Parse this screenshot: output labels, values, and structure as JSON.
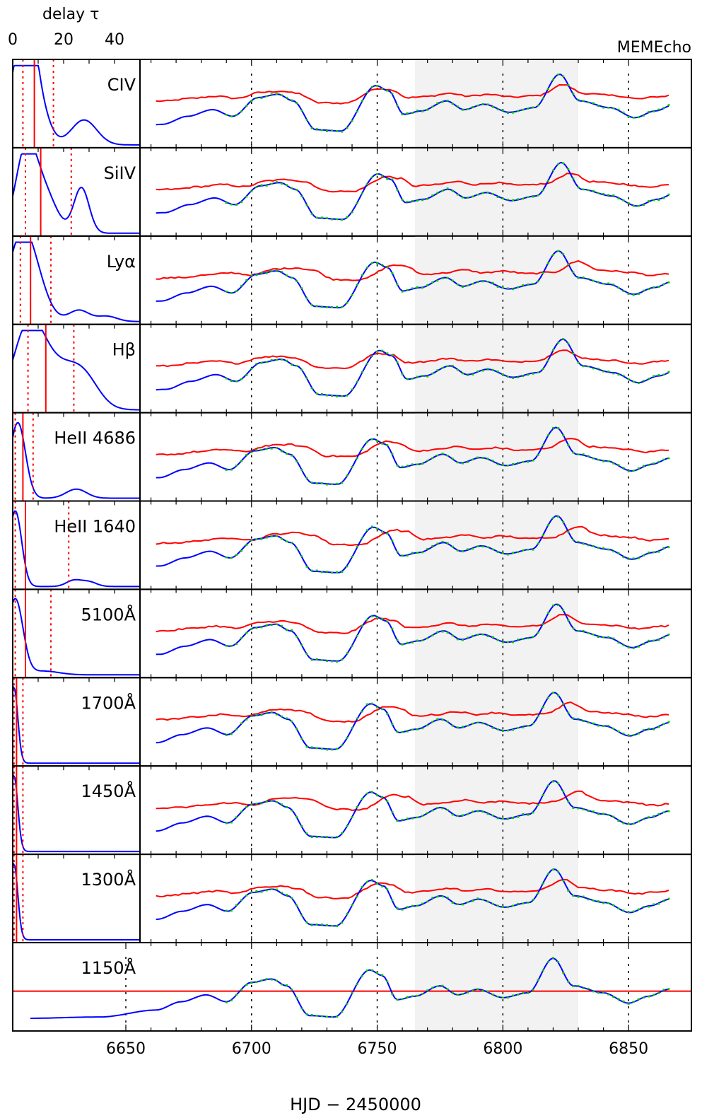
{
  "chart_data": {
    "type": "line",
    "label": "MEMEcho",
    "delay_axis": {
      "label": "delay τ",
      "ticks": [
        "0",
        "20",
        "40"
      ],
      "range": [
        0,
        50
      ]
    },
    "time_axis": {
      "label": "HJD − 2450000",
      "ticks": [
        "6650",
        "6700",
        "6750",
        "6800",
        "6850"
      ],
      "range": [
        6605,
        6875
      ]
    },
    "shaded_interval": [
      6765,
      6830
    ],
    "dashed_marks": [
      6650,
      6700,
      6750,
      6800,
      6850
    ],
    "colors": {
      "model": "#0000ff",
      "driver_or_background": "#ff0000",
      "data": "#00cc00",
      "shade": "#f2f2f2"
    },
    "panels": [
      {
        "name": "CIV",
        "lag_median": 8.5,
        "lag_interval": [
          4,
          16
        ],
        "transfer_peaks": [
          [
            2,
            0.9,
            4
          ],
          [
            6,
            1.0,
            3
          ],
          [
            10,
            0.55,
            4
          ],
          [
            28,
            0.33,
            5
          ]
        ]
      },
      {
        "name": "SiIV",
        "lag_median": 11,
        "lag_interval": [
          5,
          23
        ],
        "transfer_peaks": [
          [
            5,
            1.0,
            4
          ],
          [
            12,
            0.55,
            5
          ],
          [
            27,
            0.6,
            3
          ]
        ]
      },
      {
        "name": "Lyα",
        "lag_median": 7,
        "lag_interval": [
          3,
          15
        ],
        "transfer_peaks": [
          [
            3,
            1.0,
            5
          ],
          [
            9,
            0.4,
            5
          ],
          [
            26,
            0.15,
            4
          ],
          [
            37,
            0.07,
            4
          ]
        ]
      },
      {
        "name": "Hβ",
        "lag_median": 13,
        "lag_interval": [
          6,
          24
        ],
        "transfer_peaks": [
          [
            6,
            1.0,
            6
          ],
          [
            17,
            0.5,
            8
          ],
          [
            28,
            0.35,
            6
          ]
        ]
      },
      {
        "name": "HeII 4686",
        "lag_median": 4,
        "lag_interval": [
          1,
          8
        ],
        "transfer_peaks": [
          [
            2,
            1.0,
            3
          ],
          [
            25,
            0.12,
            4
          ]
        ]
      },
      {
        "name": "HeII 1640",
        "lag_median": 5,
        "lag_interval": [
          1,
          22
        ],
        "transfer_peaks": [
          [
            1,
            1.0,
            2.5
          ],
          [
            24,
            0.08,
            3
          ],
          [
            30,
            0.06,
            3
          ]
        ]
      },
      {
        "name": "5100Å",
        "lag_median": 5,
        "lag_interval": [
          1,
          15
        ],
        "transfer_peaks": [
          [
            1,
            1.0,
            3
          ],
          [
            12,
            0.05,
            6
          ]
        ]
      },
      {
        "name": "1700Å",
        "lag_median": 1.5,
        "lag_interval": [
          0.5,
          4
        ],
        "transfer_peaks": [
          [
            0.5,
            1.0,
            1.5
          ]
        ]
      },
      {
        "name": "1450Å",
        "lag_median": 1.5,
        "lag_interval": [
          0.5,
          4
        ],
        "transfer_peaks": [
          [
            0.5,
            1.0,
            1.5
          ]
        ]
      },
      {
        "name": "1300Å",
        "lag_median": 1.5,
        "lag_interval": [
          0.5,
          4
        ],
        "transfer_peaks": [
          [
            0.5,
            1.0,
            1.5
          ]
        ]
      },
      {
        "name": "1150Å",
        "lag_median": null,
        "lag_interval": null,
        "transfer_peaks": []
      }
    ]
  }
}
